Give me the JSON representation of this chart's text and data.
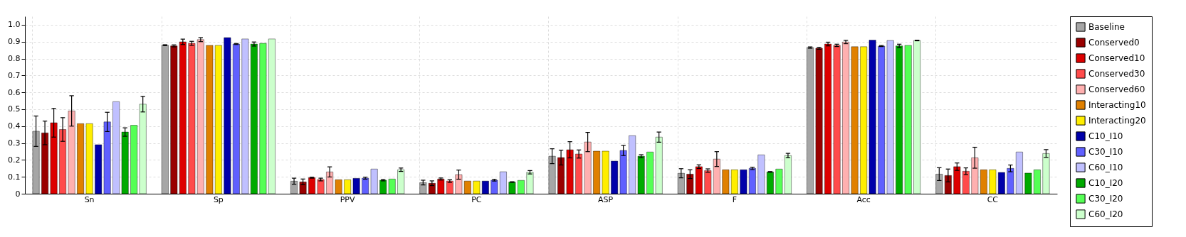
{
  "chart_data": {
    "type": "bar",
    "categories": [
      "Sn",
      "Sp",
      "PPV",
      "PC",
      "ASP",
      "F",
      "Acc",
      "CC"
    ],
    "ylim": [
      0,
      1.05
    ],
    "yticks": [
      0,
      0.1,
      0.2,
      0.3,
      0.4,
      0.5,
      0.6,
      0.7,
      0.8,
      0.9,
      {
        "value": 1,
        "label": "1.0"
      }
    ],
    "grid": true,
    "legend": "right",
    "series": [
      {
        "name": "Baseline",
        "color": "#a6a6a6",
        "values": [
          0.37,
          0.879,
          0.074,
          0.066,
          0.222,
          0.121,
          0.865,
          0.116
        ],
        "errors": [
          0.09,
          0.003,
          0.018,
          0.014,
          0.044,
          0.027,
          0.004,
          0.038
        ]
      },
      {
        "name": "Conserved0",
        "color": "#990000",
        "values": [
          0.36,
          0.875,
          0.07,
          0.062,
          0.214,
          0.116,
          0.861,
          0.108
        ],
        "errors": [
          0.07,
          0.006,
          0.017,
          0.014,
          0.044,
          0.026,
          0.006,
          0.038
        ]
      },
      {
        "name": "Conserved10",
        "color": "#dd0000",
        "values": [
          0.42,
          0.899,
          0.095,
          0.087,
          0.26,
          0.16,
          0.886,
          0.16
        ],
        "errors": [
          0.085,
          0.016,
          0.003,
          0.006,
          0.048,
          0.011,
          0.011,
          0.022
        ]
      },
      {
        "name": "Conserved30",
        "color": "#ff4b4b",
        "values": [
          0.38,
          0.89,
          0.084,
          0.075,
          0.235,
          0.137,
          0.878,
          0.133
        ],
        "errors": [
          0.07,
          0.012,
          0.008,
          0.008,
          0.024,
          0.01,
          0.007,
          0.02
        ]
      },
      {
        "name": "Conserved60",
        "color": "#ffb0b0",
        "values": [
          0.49,
          0.912,
          0.129,
          0.113,
          0.306,
          0.205,
          0.898,
          0.213
        ],
        "errors": [
          0.09,
          0.012,
          0.03,
          0.027,
          0.057,
          0.044,
          0.01,
          0.062
        ]
      },
      {
        "name": "Interacting10",
        "color": "#e08000",
        "values": [
          0.415,
          0.878,
          0.083,
          0.075,
          0.252,
          0.142,
          0.87,
          0.142
        ]
      },
      {
        "name": "Interacting20",
        "color": "#ffee00",
        "values": [
          0.415,
          0.878,
          0.083,
          0.075,
          0.252,
          0.142,
          0.87,
          0.142
        ]
      },
      {
        "name": "C10_I10",
        "color": "#0000aa",
        "values": [
          0.29,
          0.924,
          0.091,
          0.075,
          0.193,
          0.142,
          0.909,
          0.126
        ]
      },
      {
        "name": "C30_I10",
        "color": "#6060ff",
        "values": [
          0.425,
          0.886,
          0.092,
          0.08,
          0.256,
          0.15,
          0.874,
          0.15
        ],
        "errors": [
          0.057,
          0.003,
          0.006,
          0.005,
          0.03,
          0.007,
          0.003,
          0.02
        ]
      },
      {
        "name": "C60_I10",
        "color": "#c0c0ff",
        "values": [
          0.545,
          0.916,
          0.146,
          0.13,
          0.344,
          0.23,
          0.907,
          0.247
        ]
      },
      {
        "name": "C10_I20",
        "color": "#00aa00",
        "values": [
          0.365,
          0.886,
          0.08,
          0.069,
          0.222,
          0.129,
          0.875,
          0.122
        ],
        "errors": [
          0.025,
          0.012,
          0.004,
          0.002,
          0.009,
          0.002,
          0.01,
          null
        ]
      },
      {
        "name": "C30_I20",
        "color": "#55ff55",
        "values": [
          0.405,
          0.89,
          0.087,
          0.079,
          0.247,
          0.146,
          0.878,
          0.142
        ]
      },
      {
        "name": "C60_I20",
        "color": "#ccffcc",
        "values": [
          0.53,
          0.916,
          0.142,
          0.127,
          0.335,
          0.226,
          0.907,
          0.238
        ],
        "errors": [
          0.046,
          null,
          0.01,
          0.01,
          0.03,
          0.013,
          0.002,
          0.023
        ]
      }
    ]
  }
}
